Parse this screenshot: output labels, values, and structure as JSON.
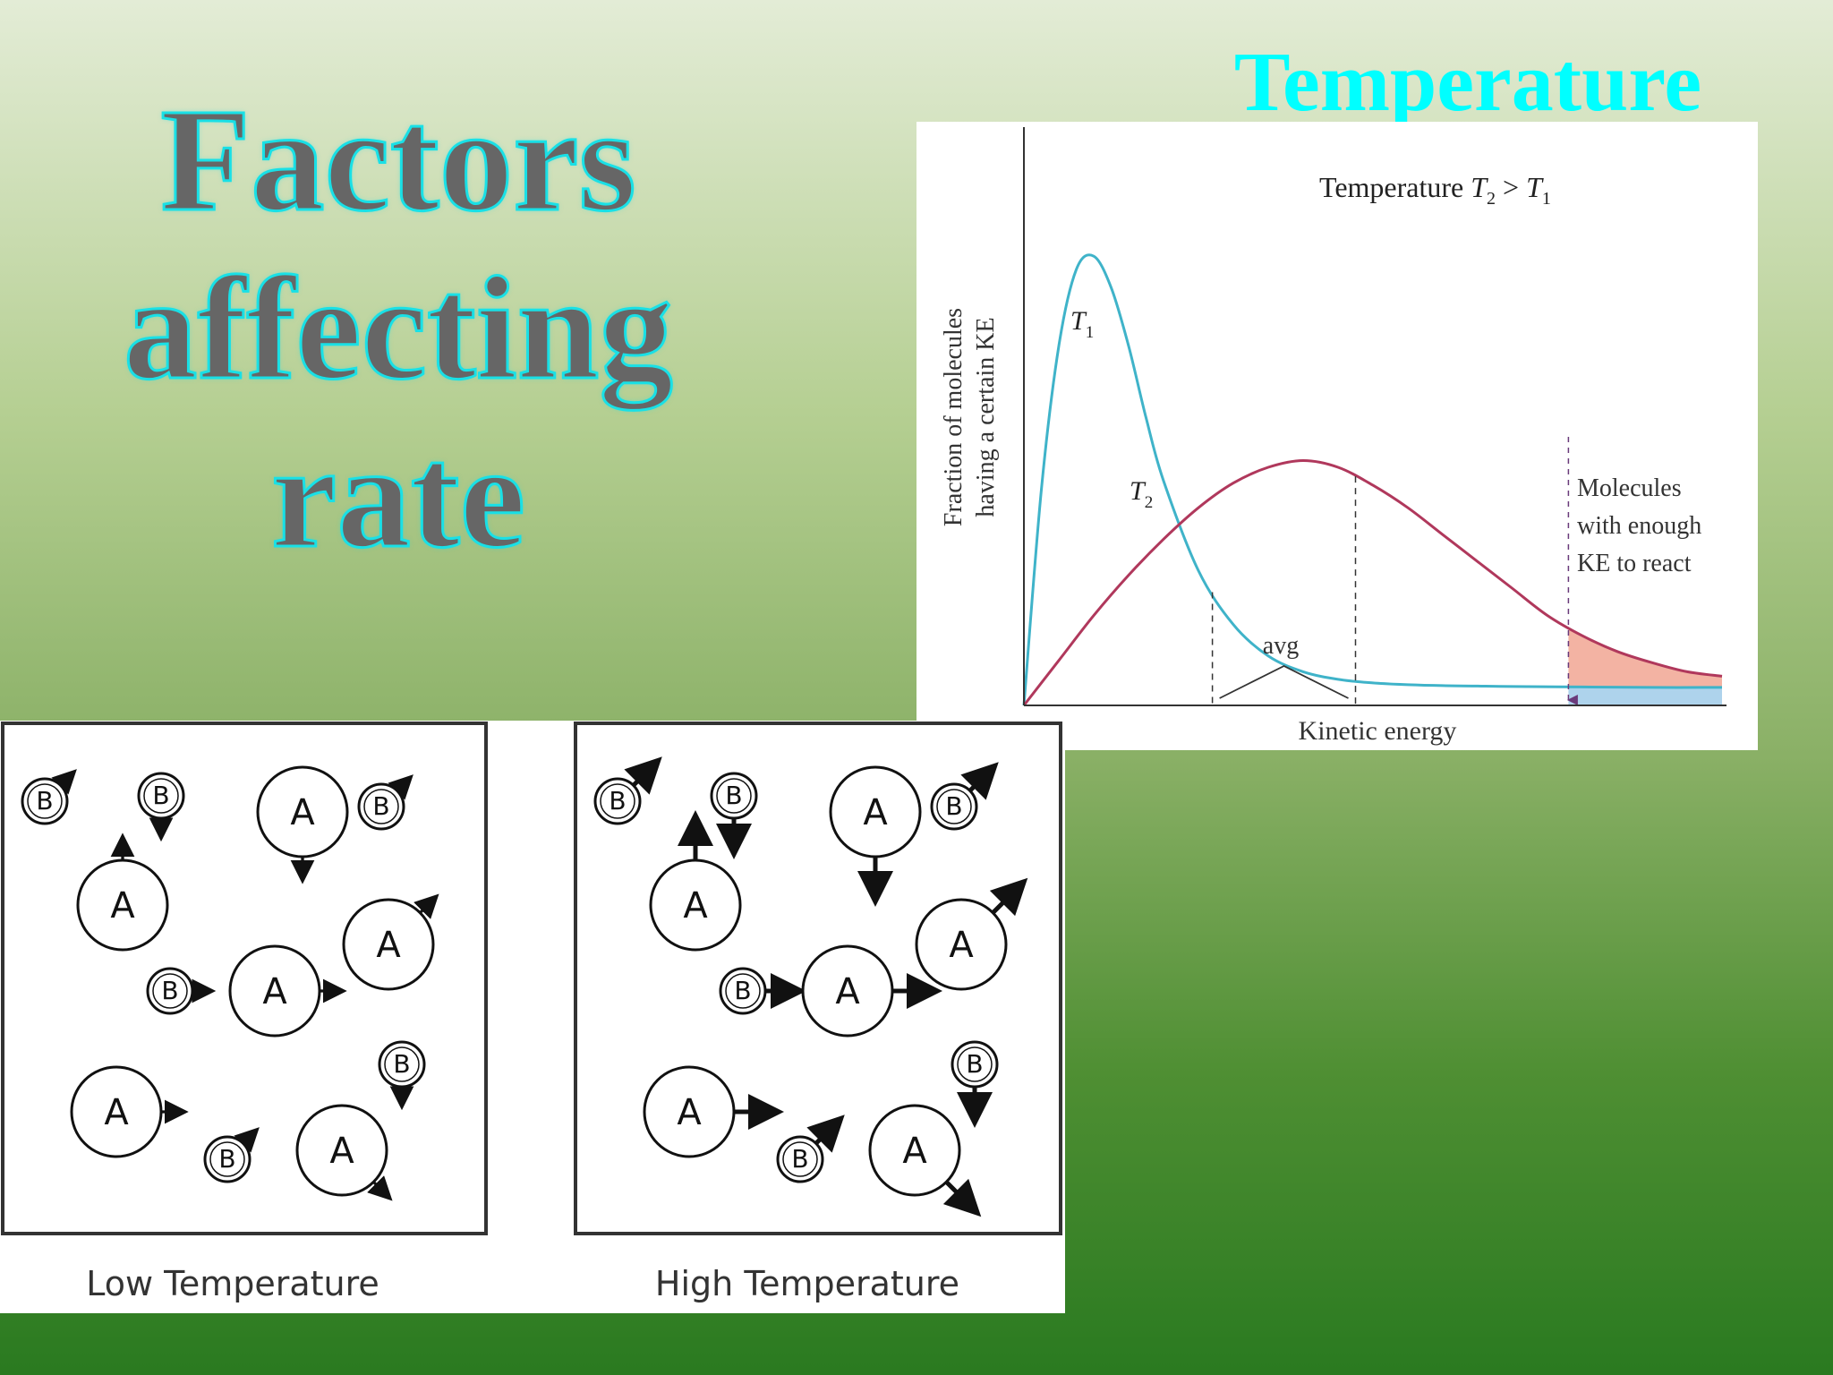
{
  "slide": {
    "title_lines": [
      "Factors",
      "affecting",
      "rate"
    ],
    "heading": "Temperature"
  },
  "chart_data": {
    "type": "line",
    "title": "Temperature T2 > T1",
    "title_parts": {
      "text": "Temperature ",
      "t2": "T",
      "t2_sub": "2",
      "gt": " > ",
      "t1": "T",
      "t1_sub": "1"
    },
    "xlabel": "Kinetic energy",
    "ylabel_lines": [
      "Fraction of molecules",
      "having a certain KE"
    ],
    "series": [
      {
        "name": "T1",
        "label": "T",
        "sub": "1",
        "color": "#3fb3c9",
        "x": [
          0,
          0.25,
          0.5,
          0.75,
          1.0,
          1.25,
          1.5,
          1.75,
          2.0,
          2.5,
          3.0,
          3.5,
          4.0,
          4.5,
          5.0,
          5.5,
          6.0,
          6.5,
          7.0,
          8.0,
          9.0,
          10.0
        ],
        "y": [
          0,
          0.48,
          0.8,
          0.97,
          1.0,
          0.93,
          0.8,
          0.64,
          0.5,
          0.3,
          0.18,
          0.11,
          0.075,
          0.058,
          0.05,
          0.046,
          0.044,
          0.043,
          0.042,
          0.041,
          0.04,
          0.04
        ]
      },
      {
        "name": "T2",
        "label": "T",
        "sub": "2",
        "color": "#b0385c",
        "x": [
          0,
          0.5,
          1.0,
          1.5,
          2.0,
          2.5,
          3.0,
          3.5,
          4.0,
          4.5,
          5.0,
          5.5,
          6.0,
          6.5,
          7.0,
          7.5,
          8.0,
          8.5,
          9.0,
          9.5,
          10.0
        ],
        "y": [
          0,
          0.1,
          0.2,
          0.29,
          0.37,
          0.44,
          0.495,
          0.53,
          0.545,
          0.53,
          0.49,
          0.44,
          0.38,
          0.32,
          0.26,
          0.2,
          0.155,
          0.12,
          0.095,
          0.075,
          0.065
        ]
      }
    ],
    "avg_markers": [
      2.7,
      4.75
    ],
    "avg_label": "avg",
    "threshold_x": 7.8,
    "threshold_label_lines": [
      "Molecules",
      "with enough",
      "KE to react"
    ],
    "xlim": [
      0,
      10
    ],
    "ylim": [
      0,
      1.1
    ],
    "shade_colors": {
      "T2": "#f3b3a3",
      "T1": "#aed3ec"
    }
  },
  "diagram": {
    "panels": [
      {
        "caption": "Low Temperature",
        "arrow_scale": 0.45
      },
      {
        "caption": "High Temperature",
        "arrow_scale": 1.0
      }
    ],
    "particles": [
      {
        "label": "B",
        "size": "small",
        "arrow": "up-right"
      },
      {
        "label": "B",
        "size": "small",
        "arrow": "down"
      },
      {
        "label": "A",
        "size": "large",
        "arrow": "down"
      },
      {
        "label": "B",
        "size": "small",
        "arrow": "up-right"
      },
      {
        "label": "A",
        "size": "large",
        "arrow": "up"
      },
      {
        "label": "A",
        "size": "large",
        "arrow": "up-right"
      },
      {
        "label": "B",
        "size": "small",
        "arrow": "right"
      },
      {
        "label": "A",
        "size": "large",
        "arrow": "right"
      },
      {
        "label": "B",
        "size": "small",
        "arrow": "down"
      },
      {
        "label": "A",
        "size": "large",
        "arrow": "right"
      },
      {
        "label": "B",
        "size": "small",
        "arrow": "up-right"
      },
      {
        "label": "A",
        "size": "large",
        "arrow": "down-right"
      }
    ]
  }
}
